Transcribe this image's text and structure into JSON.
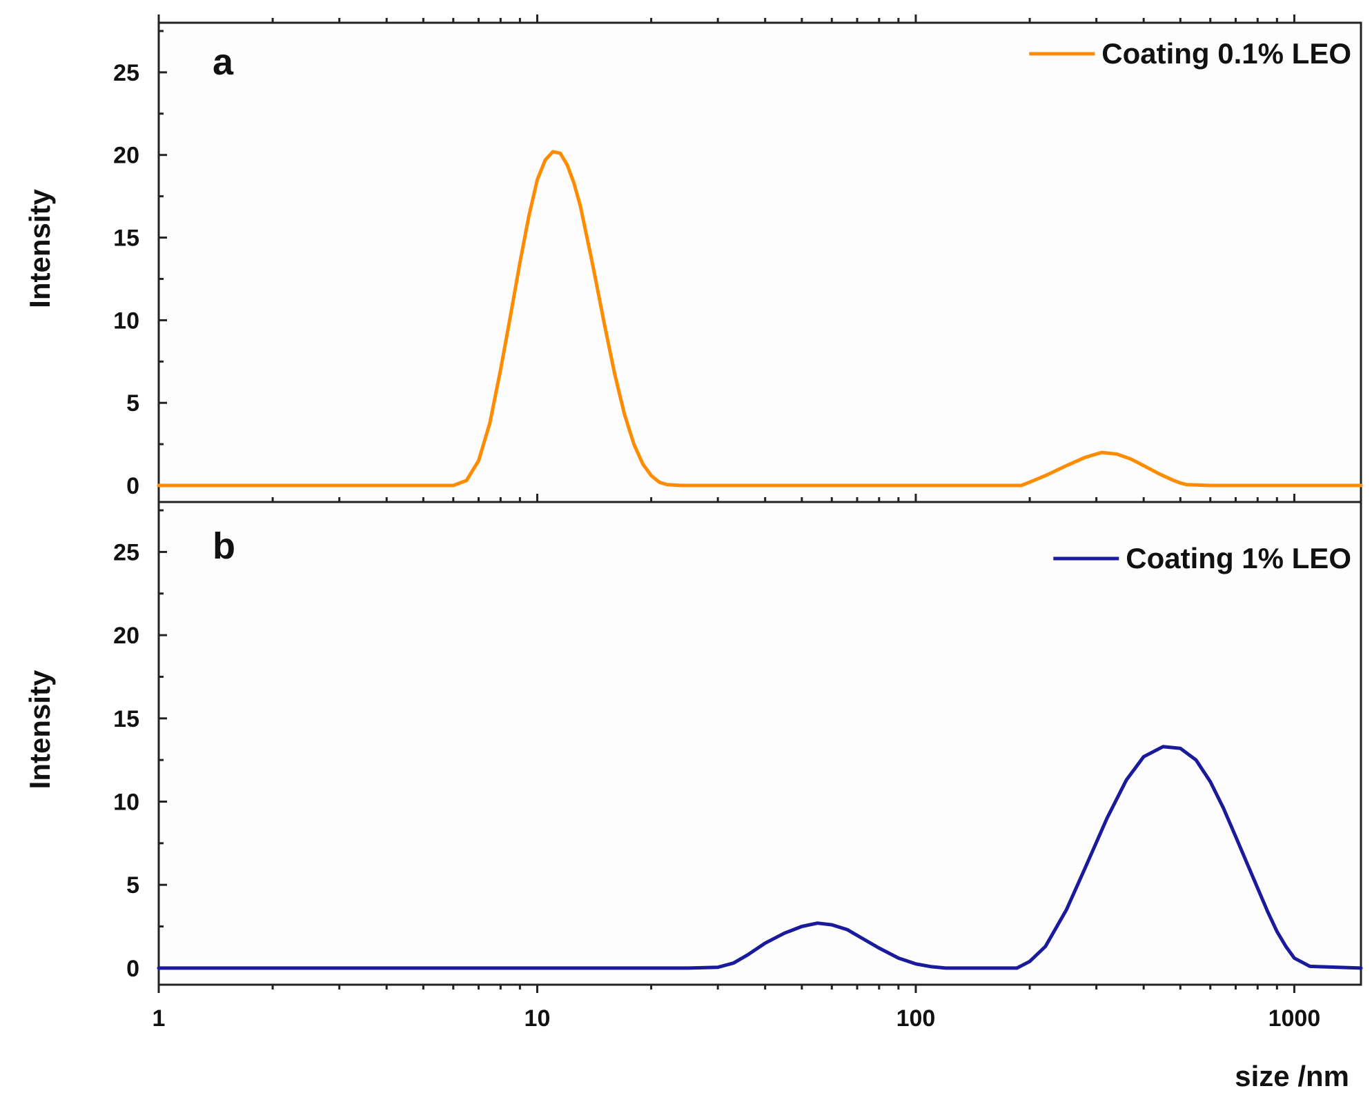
{
  "chart_data": [
    {
      "type": "line",
      "panel_label": "a",
      "xscale": "log",
      "xlim": [
        1,
        1500
      ],
      "ylim": [
        -1,
        28
      ],
      "ylabel": "Intensity",
      "xlabel": "",
      "yticks": [
        0,
        5,
        10,
        15,
        20,
        25
      ],
      "legend_position": "top-right",
      "series": [
        {
          "name": "Coating 0.1% LEO",
          "color": "#ff8c00",
          "x": [
            1,
            2,
            4,
            6,
            6.5,
            7,
            7.5,
            8,
            8.5,
            9,
            9.5,
            10,
            10.5,
            11,
            11.5,
            12,
            12.5,
            13,
            14,
            15,
            16,
            17,
            18,
            19,
            20,
            21,
            22,
            24,
            30,
            60,
            100,
            150,
            190,
            200,
            220,
            250,
            280,
            310,
            340,
            370,
            400,
            440,
            480,
            500,
            520,
            600,
            1000,
            1500
          ],
          "y": [
            0,
            0,
            0,
            0,
            0.3,
            1.5,
            3.8,
            7.0,
            10.3,
            13.5,
            16.3,
            18.5,
            19.7,
            20.2,
            20.1,
            19.4,
            18.3,
            16.9,
            13.4,
            9.9,
            6.8,
            4.3,
            2.5,
            1.3,
            0.6,
            0.2,
            0.05,
            0,
            0,
            0,
            0,
            0,
            0,
            0.2,
            0.6,
            1.2,
            1.7,
            2.0,
            1.9,
            1.6,
            1.2,
            0.7,
            0.3,
            0.15,
            0.05,
            0,
            0,
            0
          ]
        }
      ]
    },
    {
      "type": "line",
      "panel_label": "b",
      "xscale": "log",
      "xlim": [
        1,
        1500
      ],
      "ylim": [
        -1,
        28
      ],
      "ylabel": "Intensity",
      "xlabel": "size /nm",
      "xticks": [
        1,
        10,
        100,
        1000
      ],
      "yticks": [
        0,
        5,
        10,
        15,
        20,
        25
      ],
      "legend_position": "top-right",
      "series": [
        {
          "name": "Coating 1% LEO",
          "color": "#1a1a9c",
          "x": [
            1,
            10,
            25,
            30,
            33,
            36,
            40,
            45,
            50,
            55,
            60,
            66,
            72,
            80,
            90,
            100,
            110,
            120,
            150,
            185,
            200,
            220,
            250,
            280,
            320,
            360,
            400,
            450,
            500,
            550,
            600,
            650,
            700,
            750,
            800,
            850,
            900,
            950,
            1000,
            1100,
            1500
          ],
          "y": [
            0,
            0,
            0,
            0.05,
            0.3,
            0.8,
            1.5,
            2.1,
            2.5,
            2.7,
            2.6,
            2.3,
            1.8,
            1.2,
            0.6,
            0.25,
            0.08,
            0,
            0,
            0,
            0.4,
            1.3,
            3.5,
            6.0,
            9.0,
            11.3,
            12.7,
            13.3,
            13.2,
            12.5,
            11.2,
            9.6,
            7.9,
            6.3,
            4.8,
            3.4,
            2.2,
            1.3,
            0.6,
            0.1,
            0
          ]
        }
      ]
    }
  ]
}
